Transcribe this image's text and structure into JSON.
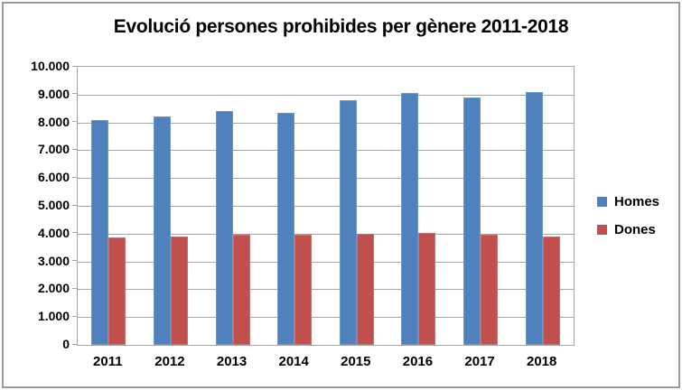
{
  "chart_data": {
    "type": "bar",
    "title": "Evolució persones prohibides per gènere 2011-2018",
    "categories": [
      "2011",
      "2012",
      "2013",
      "2014",
      "2015",
      "2016",
      "2017",
      "2018"
    ],
    "series": [
      {
        "name": "Homes",
        "color": "#4F81BD",
        "values": [
          8100,
          8230,
          8400,
          8350,
          8800,
          9050,
          8890,
          9080
        ]
      },
      {
        "name": "Dones",
        "color": "#C0504D",
        "values": [
          3850,
          3900,
          3950,
          3950,
          4000,
          4030,
          3950,
          3900
        ]
      }
    ],
    "xlabel": "",
    "ylabel": "",
    "ylim": [
      0,
      10000
    ],
    "ytick_step": 1000,
    "ytick_labels": [
      "0",
      "1.000",
      "2.000",
      "3.000",
      "4.000",
      "5.000",
      "6.000",
      "7.000",
      "8.000",
      "9.000",
      "10.000"
    ],
    "grid": "horizontal",
    "legend_position": "right"
  },
  "style_colors": {
    "background": "#ffffff",
    "text": "#000000",
    "gridline": "#a6a6a6",
    "frame_border": "#9a9a9a"
  }
}
